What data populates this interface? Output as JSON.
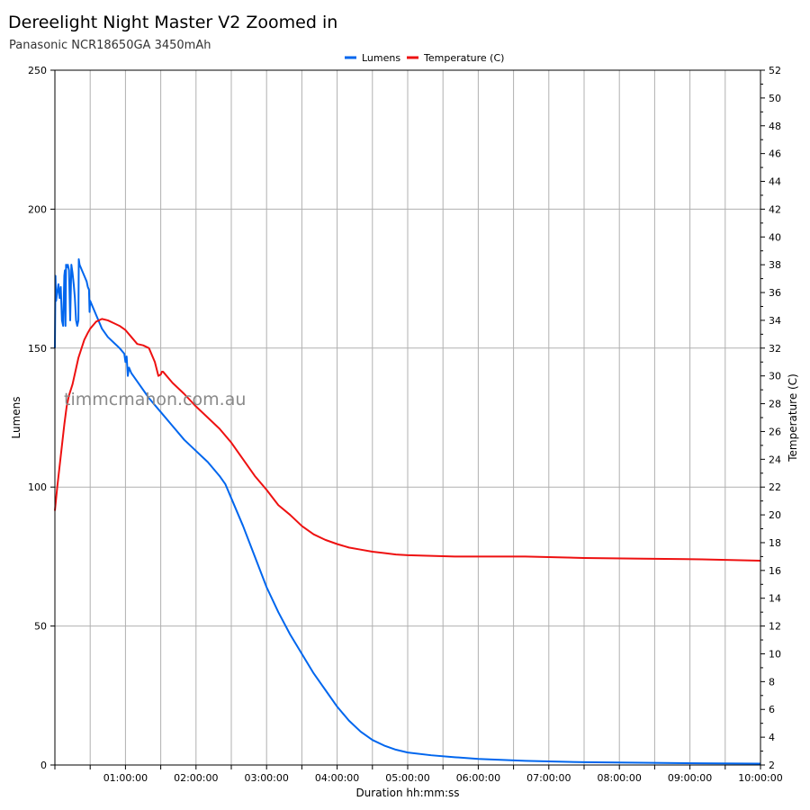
{
  "header": {
    "title": "Dereelight Night Master V2 Zoomed in",
    "subtitle": "Panasonic NCR18650GA 3450mAh"
  },
  "watermark": "timmcmahon.com.au",
  "colors": {
    "lumens": "#0066ee",
    "temperature": "#ee1111",
    "grid": "#b0b0b0"
  },
  "chart_data": {
    "type": "line",
    "title": "Dereelight Night Master V2 Zoomed in",
    "subtitle": "Panasonic NCR18650GA 3450mAh",
    "xlabel": "Duration hh:mm:ss",
    "ylabel": "Lumens",
    "y2label": "Temperature (C)",
    "xlim": [
      0,
      600
    ],
    "ylim": [
      0,
      250
    ],
    "y2lim": [
      2,
      52
    ],
    "x_ticks_minutes": [
      60,
      120,
      180,
      240,
      300,
      360,
      420,
      480,
      540,
      600
    ],
    "x_tick_labels": [
      "01:00:00",
      "02:00:00",
      "03:00:00",
      "04:00:00",
      "05:00:00",
      "06:00:00",
      "07:00:00",
      "08:00:00",
      "09:00:00",
      "10:00:00"
    ],
    "y_ticks": [
      0,
      50,
      100,
      150,
      200,
      250
    ],
    "y2_ticks": [
      2,
      4,
      6,
      8,
      10,
      12,
      14,
      16,
      18,
      20,
      22,
      24,
      26,
      28,
      30,
      32,
      34,
      36,
      38,
      40,
      42,
      44,
      46,
      48,
      50,
      52
    ],
    "grid": true,
    "legend_position": "top-center",
    "series": [
      {
        "name": "Lumens",
        "axis": "left",
        "x": [
          0,
          0.5,
          1,
          2,
          3,
          4,
          5,
          6,
          7,
          8,
          8.5,
          9,
          9.5,
          10,
          11,
          12,
          13,
          14,
          15,
          16,
          17,
          18,
          19,
          20,
          20.3,
          21,
          22,
          23,
          25,
          27,
          28,
          29,
          29.5,
          30,
          32,
          35,
          40,
          45,
          50,
          55,
          59,
          60,
          61,
          62,
          63,
          64,
          65,
          70,
          80,
          90,
          100,
          110,
          120,
          130,
          140,
          145,
          150,
          160,
          170,
          180,
          190,
          200,
          210,
          220,
          230,
          240,
          250,
          260,
          270,
          280,
          290,
          300,
          320,
          340,
          360,
          400,
          450,
          500,
          550,
          600
        ],
        "values": [
          150,
          176,
          167,
          170,
          173,
          168,
          172,
          160,
          158,
          176,
          178,
          158,
          180,
          179,
          180,
          178,
          160,
          180,
          177,
          173,
          168,
          160,
          158,
          160,
          182,
          180,
          179,
          178,
          176,
          174,
          172,
          171,
          163,
          167,
          165,
          162,
          157,
          154,
          152,
          150,
          148,
          145,
          147,
          140,
          143,
          142,
          141,
          138,
          132,
          127,
          122,
          117,
          113,
          109,
          104,
          101,
          96,
          86,
          75,
          64,
          55,
          47,
          40,
          33,
          27,
          21,
          16,
          12,
          9,
          7,
          5.5,
          4.5,
          3.5,
          2.8,
          2.2,
          1.5,
          1.0,
          0.8,
          0.6,
          0.5
        ]
      },
      {
        "name": "Temperature (C)",
        "axis": "right",
        "x": [
          0,
          2,
          4,
          6,
          8,
          10,
          12,
          15,
          20,
          25,
          28,
          30,
          32,
          35,
          40,
          45,
          50,
          55,
          60,
          65,
          70,
          75,
          80,
          85,
          88,
          90,
          91,
          92,
          95,
          100,
          110,
          120,
          130,
          140,
          150,
          160,
          170,
          180,
          190,
          200,
          210,
          220,
          230,
          240,
          250,
          260,
          270,
          280,
          290,
          300,
          320,
          340,
          360,
          400,
          450,
          500,
          550,
          600
        ],
        "values": [
          20.3,
          22,
          23.5,
          25,
          26.5,
          27.8,
          28.6,
          29.4,
          31.3,
          32.6,
          33.1,
          33.4,
          33.6,
          33.9,
          34.1,
          34.0,
          33.8,
          33.6,
          33.3,
          32.8,
          32.3,
          32.2,
          32.0,
          31.0,
          30.0,
          30.1,
          30.3,
          30.3,
          30.0,
          29.5,
          28.7,
          27.8,
          27.0,
          26.2,
          25.2,
          24.0,
          22.8,
          21.8,
          20.7,
          20.0,
          19.2,
          18.6,
          18.2,
          17.9,
          17.65,
          17.5,
          17.35,
          17.25,
          17.15,
          17.1,
          17.05,
          17.0,
          17.0,
          17.0,
          16.9,
          16.85,
          16.8,
          16.7
        ]
      }
    ]
  }
}
